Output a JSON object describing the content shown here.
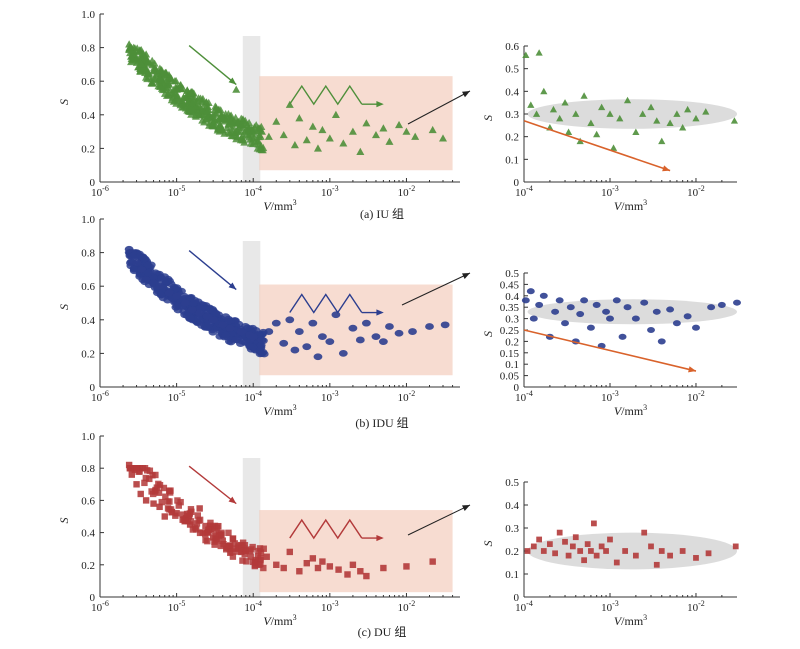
{
  "chart_data": [
    {
      "id": "a-main",
      "type": "scatter",
      "marker": "triangle",
      "color": "#4e8f3a",
      "xscale": "log",
      "xlim": [
        1e-06,
        0.05
      ],
      "ylim": [
        0,
        1.0
      ],
      "xticks": [
        "10^-6",
        "10^-5",
        "10^-4",
        "10^-3",
        "10^-2"
      ],
      "yticks": [
        "0",
        "0.2",
        "0.4",
        "0.6",
        "0.8",
        "1.0"
      ],
      "ylabel": "S",
      "xlabel": "V",
      "xunit": "/mm",
      "xunit_sup": "3",
      "caption": "(a) IU 组",
      "band": {
        "x": [
          8e-05,
          0.00012
        ]
      },
      "region": {
        "x": [
          0.00012,
          0.04
        ],
        "y": [
          0.07,
          0.63
        ]
      },
      "trend": {
        "a": 0.0212,
        "b": -0.28
      },
      "points": [
        [
          2.4e-06,
          0.82
        ],
        [
          3e-06,
          0.74
        ],
        [
          3.5e-06,
          0.7
        ],
        [
          4e-06,
          0.76
        ],
        [
          5e-06,
          0.66
        ],
        [
          6e-06,
          0.62
        ],
        [
          8e-06,
          0.58
        ],
        [
          1e-05,
          0.55
        ],
        [
          1.3e-05,
          0.5
        ],
        [
          1.6e-05,
          0.47
        ],
        [
          2e-05,
          0.45
        ],
        [
          2.5e-05,
          0.42
        ],
        [
          3e-05,
          0.4
        ],
        [
          4e-05,
          0.38
        ],
        [
          5e-05,
          0.36
        ],
        [
          6e-05,
          0.55
        ],
        [
          7e-05,
          0.34
        ],
        [
          9e-05,
          0.32
        ],
        [
          0.0001,
          0.31
        ],
        [
          0.00013,
          0.3
        ],
        [
          0.00016,
          0.27
        ],
        [
          0.0002,
          0.36
        ],
        [
          0.00025,
          0.28
        ],
        [
          0.0003,
          0.46
        ],
        [
          0.00035,
          0.22
        ],
        [
          0.0004,
          0.38
        ],
        [
          0.0005,
          0.25
        ],
        [
          0.0006,
          0.33
        ],
        [
          0.0007,
          0.2
        ],
        [
          0.0008,
          0.31
        ],
        [
          0.001,
          0.26
        ],
        [
          0.0012,
          0.4
        ],
        [
          0.0015,
          0.23
        ],
        [
          0.002,
          0.3
        ],
        [
          0.0025,
          0.18
        ],
        [
          0.003,
          0.35
        ],
        [
          0.004,
          0.28
        ],
        [
          0.005,
          0.32
        ],
        [
          0.006,
          0.24
        ],
        [
          0.008,
          0.34
        ],
        [
          0.01,
          0.3
        ],
        [
          0.013,
          0.27
        ],
        [
          0.022,
          0.31
        ],
        [
          0.03,
          0.26
        ]
      ]
    },
    {
      "id": "a-inset",
      "type": "scatter",
      "marker": "triangle",
      "color": "#4e8f3a",
      "xscale": "log",
      "xlim": [
        0.0001,
        0.03
      ],
      "ylim": [
        0,
        0.6
      ],
      "xticks": [
        "10^-4",
        "10^-3",
        "10^-2"
      ],
      "yticks": [
        "0",
        "0.1",
        "0.2",
        "0.3",
        "0.4",
        "0.5",
        "0.6"
      ],
      "ylabel": "S",
      "xlabel": "V",
      "xunit": "/mm",
      "xunit_sup": "3",
      "ellipse": {
        "cx": 0.0025,
        "cy": 0.3,
        "xspan": [
          0.00011,
          0.03
        ],
        "ry": 0.065
      },
      "arrow": {
        "from": [
          0.0001,
          0.27
        ],
        "to": [
          0.005,
          0.05
        ]
      },
      "points": [
        [
          0.000105,
          0.56
        ],
        [
          0.00015,
          0.57
        ],
        [
          0.00012,
          0.34
        ],
        [
          0.00014,
          0.3
        ],
        [
          0.00017,
          0.4
        ],
        [
          0.0002,
          0.24
        ],
        [
          0.00022,
          0.32
        ],
        [
          0.00026,
          0.28
        ],
        [
          0.0003,
          0.35
        ],
        [
          0.00033,
          0.22
        ],
        [
          0.0004,
          0.3
        ],
        [
          0.00045,
          0.18
        ],
        [
          0.0005,
          0.38
        ],
        [
          0.0006,
          0.26
        ],
        [
          0.0007,
          0.21
        ],
        [
          0.0008,
          0.33
        ],
        [
          0.001,
          0.3
        ],
        [
          0.0011,
          0.15
        ],
        [
          0.0013,
          0.28
        ],
        [
          0.0016,
          0.36
        ],
        [
          0.002,
          0.22
        ],
        [
          0.0024,
          0.3
        ],
        [
          0.003,
          0.33
        ],
        [
          0.0035,
          0.27
        ],
        [
          0.004,
          0.18
        ],
        [
          0.005,
          0.26
        ],
        [
          0.006,
          0.3
        ],
        [
          0.007,
          0.24
        ],
        [
          0.008,
          0.32
        ],
        [
          0.01,
          0.28
        ],
        [
          0.013,
          0.31
        ],
        [
          0.028,
          0.27
        ]
      ]
    },
    {
      "id": "b-main",
      "type": "scatter",
      "marker": "circle",
      "color": "#2c3e8f",
      "xscale": "log",
      "xlim": [
        1e-06,
        0.05
      ],
      "ylim": [
        0,
        1.0
      ],
      "xticks": [
        "10^-6",
        "10^-5",
        "10^-4",
        "10^-3",
        "10^-2"
      ],
      "yticks": [
        "0",
        "0.2",
        "0.4",
        "0.6",
        "0.8",
        "1.0"
      ],
      "ylabel": "S",
      "xlabel": "V",
      "xunit": "/mm",
      "xunit_sup": "3",
      "caption": "(b) IDU 组",
      "band": {
        "x": [
          8e-05,
          0.00012
        ]
      },
      "region": {
        "x": [
          0.00012,
          0.04
        ],
        "y": [
          0.07,
          0.61
        ]
      },
      "trend": {
        "a": 0.0212,
        "b": -0.28
      },
      "points": [
        [
          2.4e-06,
          0.82
        ],
        [
          3e-06,
          0.74
        ],
        [
          3.5e-06,
          0.7
        ],
        [
          4e-06,
          0.64
        ],
        [
          5e-06,
          0.62
        ],
        [
          6e-06,
          0.6
        ],
        [
          8e-06,
          0.56
        ],
        [
          1e-05,
          0.54
        ],
        [
          1.3e-05,
          0.5
        ],
        [
          1.6e-05,
          0.46
        ],
        [
          2e-05,
          0.44
        ],
        [
          2.5e-05,
          0.42
        ],
        [
          3e-05,
          0.4
        ],
        [
          4e-05,
          0.37
        ],
        [
          5e-05,
          0.35
        ],
        [
          7e-05,
          0.33
        ],
        [
          9e-05,
          0.31
        ],
        [
          0.0001,
          0.3
        ],
        [
          0.00013,
          0.28
        ],
        [
          0.00016,
          0.33
        ],
        [
          0.0002,
          0.38
        ],
        [
          0.00025,
          0.26
        ],
        [
          0.0003,
          0.4
        ],
        [
          0.00035,
          0.22
        ],
        [
          0.0004,
          0.33
        ],
        [
          0.0005,
          0.24
        ],
        [
          0.0006,
          0.38
        ],
        [
          0.0007,
          0.18
        ],
        [
          0.0008,
          0.3
        ],
        [
          0.001,
          0.27
        ],
        [
          0.0012,
          0.43
        ],
        [
          0.0015,
          0.2
        ],
        [
          0.002,
          0.35
        ],
        [
          0.0025,
          0.28
        ],
        [
          0.003,
          0.38
        ],
        [
          0.004,
          0.3
        ],
        [
          0.005,
          0.27
        ],
        [
          0.006,
          0.36
        ],
        [
          0.008,
          0.32
        ],
        [
          0.012,
          0.33
        ],
        [
          0.02,
          0.36
        ],
        [
          0.032,
          0.37
        ]
      ]
    },
    {
      "id": "b-inset",
      "type": "scatter",
      "marker": "circle",
      "color": "#2c3e8f",
      "xscale": "log",
      "xlim": [
        0.0001,
        0.03
      ],
      "ylim": [
        0,
        0.5
      ],
      "xticks": [
        "10^-4",
        "10^-3",
        "10^-2"
      ],
      "yticks": [
        "0",
        "0.05",
        "0.1",
        "0.15",
        "0.2",
        "0.25",
        "0.3",
        "0.35",
        "0.4",
        "0.45",
        "0.5"
      ],
      "ylabel": "S",
      "xlabel": "V",
      "xunit": "/mm",
      "xunit_sup": "3",
      "ellipse": {
        "cx": 0.0025,
        "cy": 0.33,
        "xspan": [
          0.00011,
          0.03
        ],
        "ry": 0.055
      },
      "arrow": {
        "from": [
          0.0001,
          0.25
        ],
        "to": [
          0.01,
          0.07
        ]
      },
      "points": [
        [
          0.000105,
          0.38
        ],
        [
          0.00012,
          0.42
        ],
        [
          0.00013,
          0.3
        ],
        [
          0.00015,
          0.36
        ],
        [
          0.00017,
          0.4
        ],
        [
          0.0002,
          0.22
        ],
        [
          0.00023,
          0.33
        ],
        [
          0.00026,
          0.38
        ],
        [
          0.0003,
          0.28
        ],
        [
          0.00035,
          0.35
        ],
        [
          0.0004,
          0.2
        ],
        [
          0.00045,
          0.32
        ],
        [
          0.0005,
          0.38
        ],
        [
          0.0006,
          0.26
        ],
        [
          0.0007,
          0.36
        ],
        [
          0.0008,
          0.18
        ],
        [
          0.0009,
          0.33
        ],
        [
          0.001,
          0.3
        ],
        [
          0.0012,
          0.38
        ],
        [
          0.0014,
          0.22
        ],
        [
          0.0016,
          0.35
        ],
        [
          0.002,
          0.3
        ],
        [
          0.0025,
          0.37
        ],
        [
          0.003,
          0.25
        ],
        [
          0.0035,
          0.33
        ],
        [
          0.004,
          0.2
        ],
        [
          0.005,
          0.34
        ],
        [
          0.006,
          0.28
        ],
        [
          0.008,
          0.31
        ],
        [
          0.01,
          0.26
        ],
        [
          0.015,
          0.35
        ],
        [
          0.02,
          0.36
        ],
        [
          0.03,
          0.37
        ]
      ]
    },
    {
      "id": "c-main",
      "type": "scatter",
      "marker": "square",
      "color": "#b33a3a",
      "xscale": "log",
      "xlim": [
        1e-06,
        0.05
      ],
      "ylim": [
        0,
        1.0
      ],
      "xticks": [
        "10^-6",
        "10^-5",
        "10^-4",
        "10^-3",
        "10^-2"
      ],
      "yticks": [
        "0",
        "0.2",
        "0.4",
        "0.6",
        "0.8",
        "1.0"
      ],
      "ylabel": "S",
      "xlabel": "V",
      "xunit": "/mm",
      "xunit_sup": "3",
      "caption": "(c) DU 组",
      "band": {
        "x": [
          8e-05,
          0.00012
        ]
      },
      "region": {
        "x": [
          0.00012,
          0.04
        ],
        "y": [
          0.03,
          0.54
        ]
      },
      "trend": {
        "a": 0.0125,
        "b": -0.33
      },
      "points": [
        [
          2.4e-06,
          0.82
        ],
        [
          2.6e-06,
          0.76
        ],
        [
          3e-06,
          0.7
        ],
        [
          3.4e-06,
          0.64
        ],
        [
          4e-06,
          0.6
        ],
        [
          5e-06,
          0.58
        ],
        [
          6e-06,
          0.56
        ],
        [
          7e-06,
          0.5
        ],
        [
          8e-06,
          0.66
        ],
        [
          1e-05,
          0.52
        ],
        [
          1.2e-05,
          0.48
        ],
        [
          1.5e-05,
          0.45
        ],
        [
          1.8e-05,
          0.42
        ],
        [
          2e-05,
          0.55
        ],
        [
          2.5e-05,
          0.4
        ],
        [
          3e-05,
          0.37
        ],
        [
          3.5e-05,
          0.44
        ],
        [
          4e-05,
          0.35
        ],
        [
          5e-05,
          0.32
        ],
        [
          6e-05,
          0.3
        ],
        [
          7e-05,
          0.28
        ],
        [
          8e-05,
          0.29
        ],
        [
          0.00012,
          0.2
        ],
        [
          0.00015,
          0.25
        ],
        [
          0.0002,
          0.2
        ],
        [
          0.00025,
          0.18
        ],
        [
          0.0003,
          0.28
        ],
        [
          0.0004,
          0.16
        ],
        [
          0.0005,
          0.21
        ],
        [
          0.0006,
          0.24
        ],
        [
          0.0007,
          0.18
        ],
        [
          0.0008,
          0.22
        ],
        [
          0.001,
          0.19
        ],
        [
          0.0013,
          0.17
        ],
        [
          0.0017,
          0.14
        ],
        [
          0.002,
          0.2
        ],
        [
          0.0025,
          0.16
        ],
        [
          0.003,
          0.13
        ],
        [
          0.005,
          0.18
        ],
        [
          0.01,
          0.19
        ],
        [
          0.022,
          0.22
        ]
      ]
    },
    {
      "id": "c-inset",
      "type": "scatter",
      "marker": "square",
      "color": "#b33a3a",
      "xscale": "log",
      "xlim": [
        0.0001,
        0.03
      ],
      "ylim": [
        0,
        0.5
      ],
      "xticks": [
        "10^-4",
        "10^-3",
        "10^-2"
      ],
      "yticks": [
        "0",
        "0.1",
        "0.2",
        "0.3",
        "0.4",
        "0.5"
      ],
      "ylabel": "S",
      "xlabel": "V",
      "xunit": "/mm",
      "xunit_sup": "3",
      "ellipse": {
        "cx": 0.0025,
        "cy": 0.2,
        "xspan": [
          0.00011,
          0.03
        ],
        "ry": 0.08
      },
      "points": [
        [
          0.00011,
          0.2
        ],
        [
          0.00013,
          0.22
        ],
        [
          0.00015,
          0.25
        ],
        [
          0.00017,
          0.2
        ],
        [
          0.0002,
          0.23
        ],
        [
          0.00023,
          0.19
        ],
        [
          0.00026,
          0.28
        ],
        [
          0.0003,
          0.24
        ],
        [
          0.00033,
          0.18
        ],
        [
          0.00037,
          0.22
        ],
        [
          0.0004,
          0.26
        ],
        [
          0.00045,
          0.2
        ],
        [
          0.0005,
          0.16
        ],
        [
          0.00055,
          0.23
        ],
        [
          0.0006,
          0.2
        ],
        [
          0.00065,
          0.32
        ],
        [
          0.0007,
          0.18
        ],
        [
          0.0008,
          0.22
        ],
        [
          0.0009,
          0.2
        ],
        [
          0.001,
          0.25
        ],
        [
          0.0012,
          0.15
        ],
        [
          0.0015,
          0.2
        ],
        [
          0.002,
          0.18
        ],
        [
          0.0025,
          0.28
        ],
        [
          0.003,
          0.22
        ],
        [
          0.0035,
          0.14
        ],
        [
          0.004,
          0.2
        ],
        [
          0.005,
          0.18
        ],
        [
          0.007,
          0.2
        ],
        [
          0.01,
          0.17
        ],
        [
          0.014,
          0.19
        ],
        [
          0.029,
          0.22
        ]
      ]
    }
  ]
}
